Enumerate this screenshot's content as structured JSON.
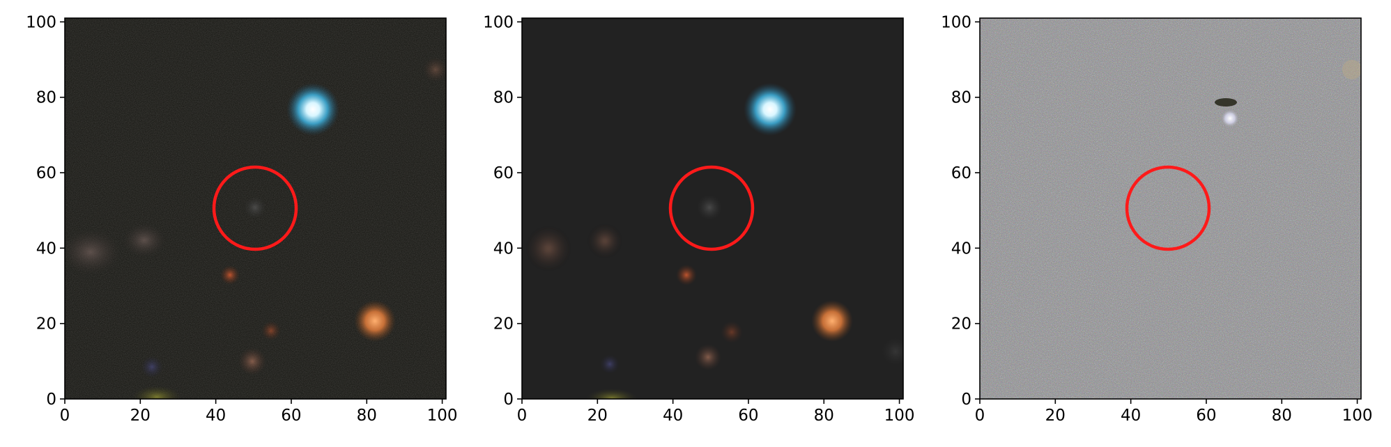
{
  "figure": {
    "panels": [
      {
        "name": "observed-image",
        "xticks": [
          "0",
          "20",
          "40",
          "60",
          "80",
          "100"
        ],
        "yticks": [
          "0",
          "20",
          "40",
          "60",
          "80",
          "100"
        ],
        "marker": {
          "shape": "circle",
          "color": "#ff1a1a",
          "center": [
            50,
            50
          ],
          "radius": 11
        }
      },
      {
        "name": "model-image",
        "xticks": [
          "0",
          "20",
          "40",
          "60",
          "80",
          "100"
        ],
        "yticks": [
          "0",
          "20",
          "40",
          "60",
          "80",
          "100"
        ],
        "marker": {
          "shape": "circle",
          "color": "#ff1a1a",
          "center": [
            50,
            50
          ],
          "radius": 11
        }
      },
      {
        "name": "residual-image",
        "xticks": [
          "0",
          "20",
          "40",
          "60",
          "80",
          "100"
        ],
        "yticks": [
          "0",
          "20",
          "40",
          "60",
          "80",
          "100"
        ],
        "marker": {
          "shape": "circle",
          "color": "#ff1a1a",
          "center": [
            50,
            50
          ],
          "radius": 11
        }
      }
    ],
    "colors": {
      "observed_background": "#1e1e1a",
      "model_background": "#222222",
      "residual_background": "#8c8c88",
      "marker": "#ff1a1a"
    }
  }
}
